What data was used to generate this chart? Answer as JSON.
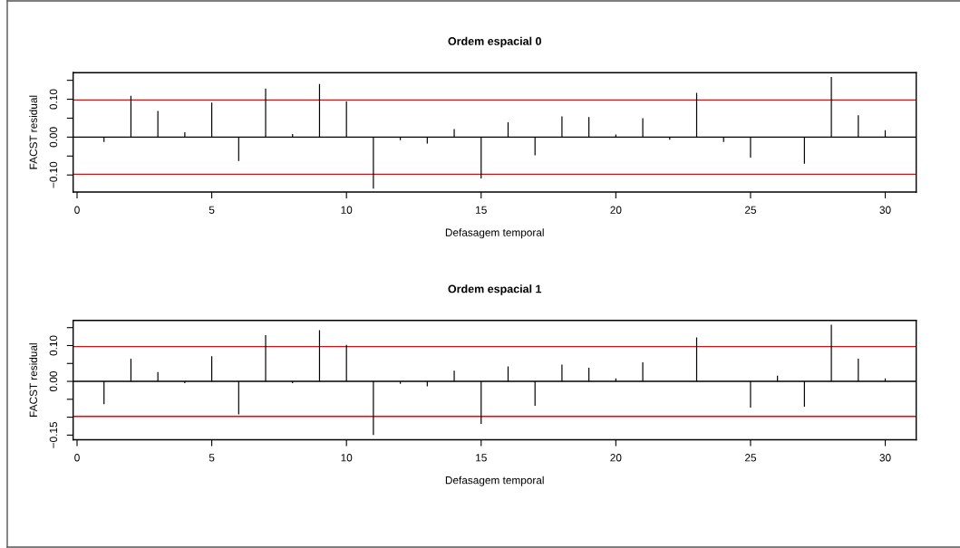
{
  "chart_data": [
    {
      "type": "bar",
      "title": "Ordem espacial 0",
      "xlabel": "Defasagem temporal",
      "ylabel": "FACST residual",
      "color": "#000000",
      "x": [
        1,
        2,
        3,
        4,
        5,
        6,
        7,
        8,
        9,
        10,
        11,
        12,
        13,
        14,
        15,
        16,
        17,
        18,
        19,
        20,
        21,
        22,
        23,
        24,
        25,
        26,
        27,
        28,
        29,
        30
      ],
      "values": [
        -0.013,
        0.109,
        0.069,
        0.013,
        0.091,
        -0.063,
        0.128,
        0.008,
        0.14,
        0.094,
        -0.136,
        -0.008,
        -0.017,
        0.021,
        -0.109,
        0.039,
        -0.048,
        0.055,
        0.053,
        0.007,
        0.05,
        -0.007,
        0.117,
        -0.013,
        -0.054,
        0.001,
        -0.07,
        0.159,
        0.058,
        0.018
      ],
      "xlim": [
        -0.145,
        31.15
      ],
      "xticks": [
        0,
        5,
        10,
        15,
        20,
        25,
        30
      ],
      "ylim": [
        -0.145,
        0.17
      ],
      "yticks": [
        {
          "value": -0.1,
          "label": "−0.10"
        },
        {
          "value": -0.05,
          "label": null
        },
        {
          "value": 0,
          "label": "0.00"
        },
        {
          "value": 0.05,
          "label": null
        },
        {
          "value": 0.1,
          "label": "0.10"
        },
        {
          "value": 0.15,
          "label": null
        }
      ],
      "ref_lines": [
        {
          "axis": "y",
          "value": 0,
          "color": "#000000"
        },
        {
          "axis": "y",
          "value": 0.098,
          "color": "#ff0000"
        },
        {
          "axis": "y",
          "value": -0.098,
          "color": "#ff0000"
        }
      ],
      "grid": false,
      "legend": false
    },
    {
      "type": "bar",
      "title": "Ordem espacial 1",
      "xlabel": "Defasagem temporal",
      "ylabel": "FACST residual",
      "color": "#000000",
      "x": [
        1,
        2,
        3,
        4,
        5,
        6,
        7,
        8,
        9,
        10,
        11,
        12,
        13,
        14,
        15,
        16,
        17,
        18,
        19,
        20,
        21,
        22,
        23,
        24,
        25,
        26,
        27,
        28,
        29,
        30
      ],
      "values": [
        -0.064,
        0.063,
        0.026,
        -0.005,
        0.07,
        -0.092,
        0.129,
        -0.005,
        0.143,
        0.102,
        -0.15,
        -0.007,
        -0.014,
        0.03,
        -0.119,
        0.042,
        -0.068,
        0.047,
        0.038,
        0.008,
        0.053,
        null,
        0.123,
        null,
        -0.073,
        0.016,
        -0.071,
        0.158,
        0.063,
        0.008
      ],
      "xlim": [
        -0.145,
        31.15
      ],
      "xticks": [
        0,
        5,
        10,
        15,
        20,
        25,
        30
      ],
      "ylim": [
        -0.163,
        0.17
      ],
      "yticks": [
        {
          "value": -0.15,
          "label": "−0.15"
        },
        {
          "value": -0.1,
          "label": null
        },
        {
          "value": -0.05,
          "label": null
        },
        {
          "value": 0,
          "label": "0.00"
        },
        {
          "value": 0.05,
          "label": null
        },
        {
          "value": 0.1,
          "label": "0.10"
        },
        {
          "value": 0.15,
          "label": null
        }
      ],
      "ref_lines": [
        {
          "axis": "y",
          "value": 0,
          "color": "#000000"
        },
        {
          "axis": "y",
          "value": 0.097,
          "color": "#ff0000"
        },
        {
          "axis": "y",
          "value": -0.098,
          "color": "#ff0000"
        }
      ],
      "grid": false,
      "legend": false
    }
  ]
}
